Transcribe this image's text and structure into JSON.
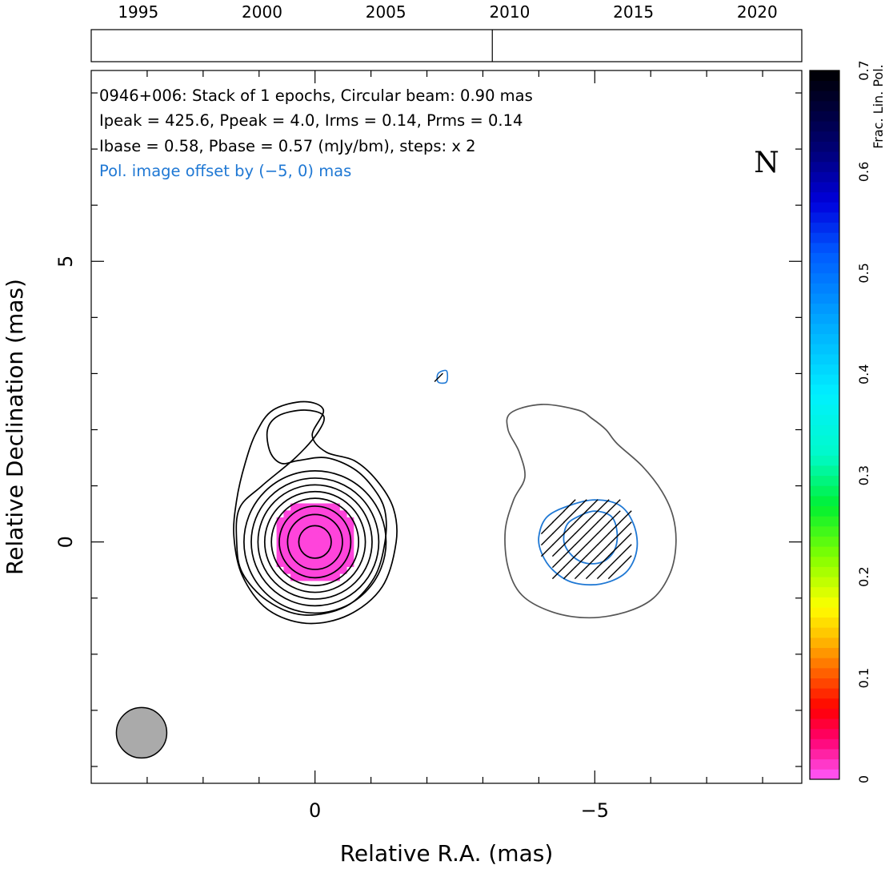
{
  "chart_data": {
    "type": "heatmap",
    "source_name": "0946+006",
    "annotation_lines": [
      "0946+006: Stack of 1 epochs, Circular beam: 0.90 mas",
      "Ipeak = 425.6, Ppeak = 4.0, Irms = 0.14, Prms = 0.14",
      "Ibase = 0.58, Pbase = 0.57 (mJy/bm), steps: x 2",
      "Pol. image offset by (−5, 0) mas"
    ],
    "north_label": "N",
    "xlabel": "Relative R.A. (mas)",
    "ylabel": "Relative Declination (mas)",
    "xlim": [
      4,
      -8.7
    ],
    "ylim": [
      -4.3,
      8.4
    ],
    "x_ticks": [
      {
        "v": 0,
        "label": "0"
      },
      {
        "v": -5,
        "label": "−5"
      }
    ],
    "y_ticks": [
      {
        "v": 0,
        "label": "0"
      },
      {
        "v": 5,
        "label": "5"
      }
    ],
    "epoch_timeline": {
      "range": [
        1993.1,
        2021.8
      ],
      "tick_years": [
        "1995",
        "2000",
        "2005",
        "2010",
        "2015",
        "2020"
      ],
      "epochs": [
        2009.3
      ]
    },
    "colorbar": {
      "label": "Frac. Lin. Pol.",
      "range": [
        0,
        0.7
      ],
      "ticks": [
        "0",
        "0.1",
        "0.2",
        "0.3",
        "0.4",
        "0.5",
        "0.6",
        "0.7"
      ]
    },
    "beam": {
      "major_mas": 0.9,
      "shape": "circular",
      "center_mas": [
        3.1,
        -3.4
      ]
    },
    "total_intensity_contours": {
      "center_mas": [
        0,
        0
      ],
      "ring_radii_mas": [
        0.29,
        0.49,
        0.64,
        0.78,
        0.9,
        1.02,
        1.14,
        1.27
      ],
      "outer_lobe_contours_mas": [
        [
          [
            -1.25,
            0.0
          ],
          [
            -1.25,
            0.55
          ],
          [
            -1.05,
            0.95
          ],
          [
            -0.7,
            1.3
          ],
          [
            -0.2,
            1.5
          ],
          [
            0.3,
            1.45
          ],
          [
            0.6,
            1.4
          ],
          [
            0.8,
            1.6
          ],
          [
            0.85,
            2.0
          ],
          [
            0.65,
            2.25
          ],
          [
            0.2,
            2.35
          ],
          [
            -0.15,
            2.25
          ],
          [
            -0.05,
            1.95
          ],
          [
            0.35,
            1.5
          ],
          [
            0.95,
            1.0
          ],
          [
            1.35,
            0.6
          ],
          [
            1.4,
            0.0
          ],
          [
            1.3,
            -0.55
          ],
          [
            0.85,
            -1.05
          ],
          [
            0.2,
            -1.3
          ],
          [
            -0.55,
            -1.15
          ],
          [
            -1.05,
            -0.65
          ]
        ],
        [
          [
            -1.45,
            0.0
          ],
          [
            -1.4,
            0.6
          ],
          [
            -1.1,
            1.1
          ],
          [
            -0.7,
            1.45
          ],
          [
            -0.2,
            1.6
          ],
          [
            0.05,
            1.9
          ],
          [
            -0.15,
            2.35
          ],
          [
            0.2,
            2.5
          ],
          [
            0.75,
            2.35
          ],
          [
            1.05,
            1.95
          ],
          [
            1.25,
            1.4
          ],
          [
            1.4,
            0.75
          ],
          [
            1.45,
            0.1
          ],
          [
            1.3,
            -0.6
          ],
          [
            0.85,
            -1.2
          ],
          [
            0.15,
            -1.45
          ],
          [
            -0.6,
            -1.3
          ],
          [
            -1.2,
            -0.8
          ]
        ]
      ]
    },
    "polarized_image": {
      "offset_mas": [
        -5,
        0
      ],
      "outer_grey_contour_mas": [
        [
          -3.5,
          2.3
        ],
        [
          -4.05,
          2.45
        ],
        [
          -4.7,
          2.35
        ],
        [
          -4.95,
          2.2
        ],
        [
          -5.2,
          2.0
        ],
        [
          -5.4,
          1.75
        ],
        [
          -5.85,
          1.35
        ],
        [
          -6.2,
          0.9
        ],
        [
          -6.4,
          0.45
        ],
        [
          -6.45,
          -0.05
        ],
        [
          -6.35,
          -0.55
        ],
        [
          -6.05,
          -1.0
        ],
        [
          -5.55,
          -1.25
        ],
        [
          -4.9,
          -1.35
        ],
        [
          -4.25,
          -1.25
        ],
        [
          -3.7,
          -0.95
        ],
        [
          -3.45,
          -0.45
        ],
        [
          -3.4,
          0.2
        ],
        [
          -3.55,
          0.75
        ],
        [
          -3.75,
          1.15
        ],
        [
          -3.65,
          1.6
        ],
        [
          -3.45,
          2.0
        ]
      ],
      "pol_contours_mas": [
        [
          [
            -4.45,
            0.0
          ],
          [
            -4.5,
            0.3
          ],
          [
            -4.7,
            0.45
          ],
          [
            -5.0,
            0.55
          ],
          [
            -5.3,
            0.45
          ],
          [
            -5.4,
            0.15
          ],
          [
            -5.35,
            -0.15
          ],
          [
            -5.15,
            -0.35
          ],
          [
            -4.85,
            -0.38
          ],
          [
            -4.6,
            -0.25
          ]
        ],
        [
          [
            -4.0,
            0.1
          ],
          [
            -4.15,
            0.45
          ],
          [
            -4.55,
            0.65
          ],
          [
            -5.0,
            0.75
          ],
          [
            -5.45,
            0.65
          ],
          [
            -5.7,
            0.3
          ],
          [
            -5.75,
            -0.15
          ],
          [
            -5.55,
            -0.55
          ],
          [
            -5.1,
            -0.75
          ],
          [
            -4.6,
            -0.72
          ],
          [
            -4.25,
            -0.5
          ],
          [
            -4.05,
            -0.2
          ]
        ]
      ],
      "small_feature_mas": [
        [
          -2.2,
          3.0
        ],
        [
          -2.35,
          3.05
        ],
        [
          -2.35,
          2.85
        ],
        [
          -2.2,
          2.85
        ]
      ],
      "evpa_vector_length_mas": 0.3,
      "evpa_angle_deg": 45
    },
    "fractional_pol_pixels": {
      "value": 0.01,
      "grid_step_mas": 0.125,
      "radius_mas": 0.73
    }
  }
}
